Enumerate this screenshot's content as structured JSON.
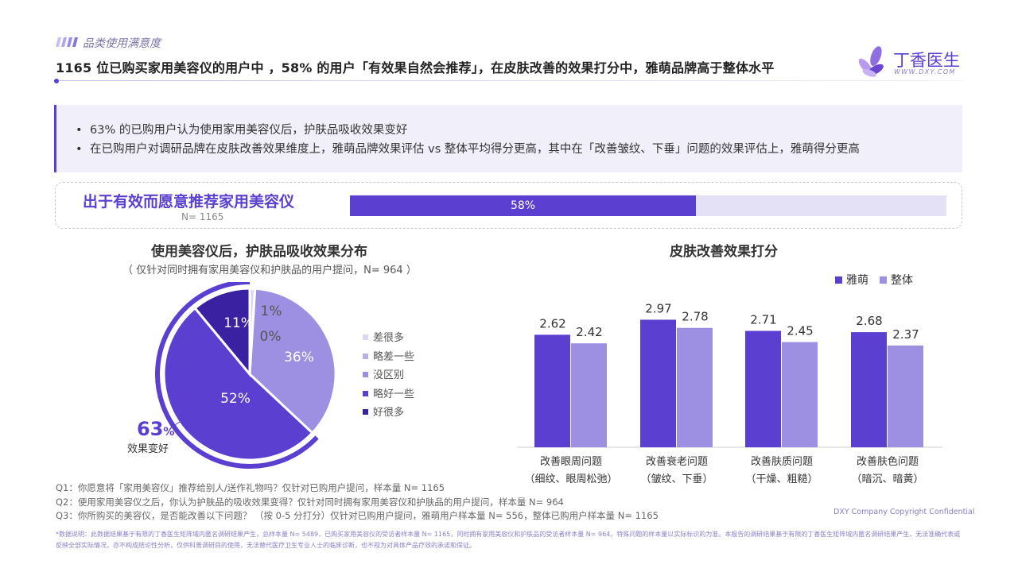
{
  "header": {
    "section_label": "品类使用满意度",
    "headline": "1165 位已购买家用美容仪的用户中 ，58% 的用户「有效果自然会推荐」，在皮肤改善的效果打分中，雅萌品牌高于整体水平",
    "logo_text": "丁香医生",
    "logo_url": "WWW.DXY.COM"
  },
  "summary": {
    "bullets": [
      "63% 的已购用户认为使用家用美容仪后，护肤品吸收效果变好",
      "在已购用户对调研品牌在皮肤改善效果维度上，雅萌品牌效果评估 vs 整体平均得分更高，其中在「改善皱纹、下垂」问题的效果评估上，雅萌得分更高"
    ]
  },
  "recommend": {
    "title": "出于有效而愿意推荐家用美容仪",
    "n_label": "N= 1165",
    "value": 58,
    "value_label": "58%"
  },
  "chart_data": [
    {
      "type": "pie",
      "title": "使用美容仪后，护肤品吸收效果分布",
      "subtitle": "（ 仅针对同时拥有家用美容仪和护肤品的用户提问，N= 964 ）",
      "categories": [
        "差很多",
        "略差一些",
        "没区别",
        "略好一些",
        "好很多"
      ],
      "values": [
        1,
        0,
        36,
        52,
        11
      ],
      "labels": [
        "1%",
        "0%",
        "36%",
        "52%",
        "11%"
      ],
      "colors": [
        "#dcd8f4",
        "#b9b0ea",
        "#9d8fe2",
        "#5b3fd0",
        "#3a21a2"
      ],
      "highlight": {
        "value": "63",
        "unit": "%",
        "label": "效果变好"
      }
    },
    {
      "type": "bar",
      "title": "皮肤改善效果打分",
      "categories": [
        [
          "改善眼周问题",
          "（细纹、眼周松弛）"
        ],
        [
          "改善衰老问题",
          "（皱纹、下垂）"
        ],
        [
          "改善肤质问题",
          "（干燥、粗糙）"
        ],
        [
          "改善肤色问题",
          "（暗沉、暗黄）"
        ]
      ],
      "series": [
        {
          "name": "雅萌",
          "values": [
            2.62,
            2.97,
            2.71,
            2.68
          ],
          "color": "#5b3fd0"
        },
        {
          "name": "整体",
          "values": [
            2.42,
            2.78,
            2.45,
            2.37
          ],
          "color": "#9d8fe2"
        }
      ],
      "ylim": [
        0,
        3.2
      ],
      "grid": false,
      "legend": "top-right"
    }
  ],
  "footnotes": {
    "questions": [
      "Q1：你愿意将「家用美容仪」推荐给别人/送作礼物吗？仅针对已购用户提问，样本量 N= 1165",
      "Q2：使用家用美容仪之后，你认为护肤品的吸收效果变得？仅针对同时拥有家用美容仪和护肤品的用户提问，样本量 N= 964",
      "Q3：你所购买的美容仪，是否能改善以下问题？ （按 0-5 分打分）仅针对已购用户提问，雅萌用户样本量 N= 556，整体已购用户样本量 N= 1165"
    ],
    "copyright": "DXY Company Copyright Confidential",
    "disclaimer": "*数据说明：此数据结果基于有限的丁香医生矩阵域内匿名调研结果产生，总样本量 N= 5489，已购买家用美容仪的受访者样本量 N= 1165，同时拥有家用美容仪和护肤品的受访者样本量 N= 964，特殊问题的样本量以实际标识的为准。本报告的调研结果基于有限的丁香医生矩阵域内匿名调研结果产生，无法准确代表或反映全部实际情况，亦不构成结论性分析，仅供科普调研目的使用，无法替代医疗卫生专业人士的临床诊断，也不视为对具体产品疗效的承诺和保证。"
  }
}
